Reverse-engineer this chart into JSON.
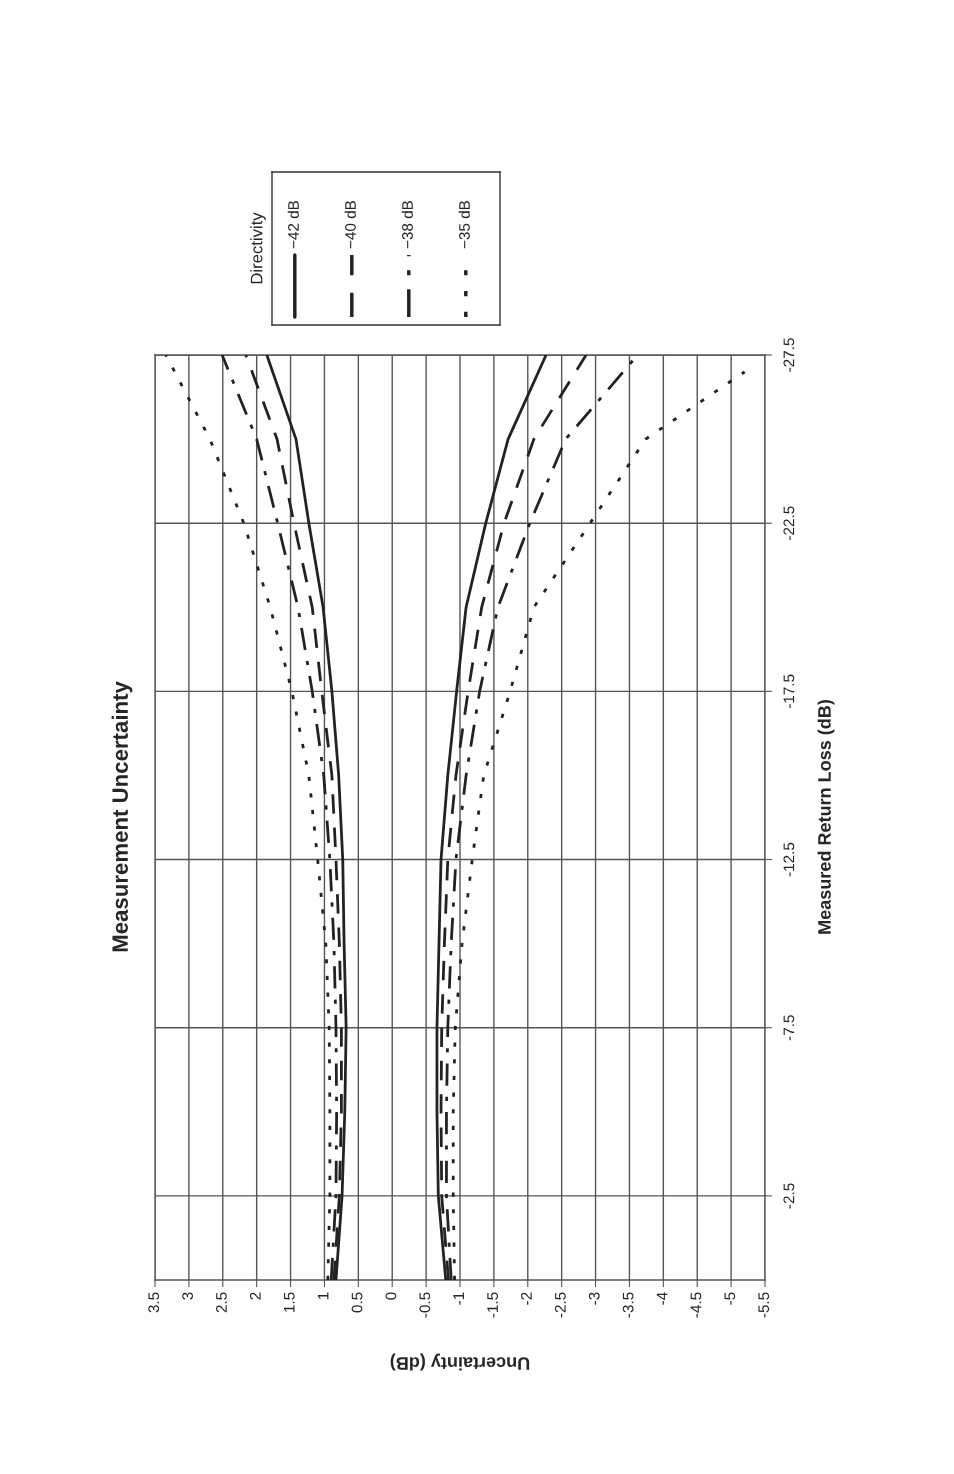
{
  "chart_data": {
    "type": "line",
    "title": "Measurement Uncertainty",
    "xlabel": "Uncertainty (dB)",
    "ylabel": "Measured Return Loss (dB)",
    "legend_title": "Directivity",
    "series": [
      {
        "name": "−42 dB",
        "color": "#222222",
        "line_style": "solid",
        "x": [
          0.83,
          0.74,
          0.7,
          0.68,
          0.71,
          0.73,
          0.79,
          0.89,
          1.02,
          1.23,
          1.42,
          1.85
        ],
        "values": [
          0,
          -2.5,
          -5,
          -7.5,
          -10,
          -12.5,
          -15,
          -17.5,
          -20,
          -22.5,
          -25,
          -27.5
        ]
      },
      {
        "name": "−40 dB",
        "color": "#222222",
        "line_style": "dashed",
        "x": [
          0.86,
          0.78,
          0.75,
          0.75,
          0.78,
          0.83,
          0.89,
          1.04,
          1.18,
          1.45,
          1.7,
          2.16
        ],
        "values": [
          0,
          -2.5,
          -5,
          -7.5,
          -10,
          -12.5,
          -15,
          -17.5,
          -20,
          -22.5,
          -25,
          -27.5
        ]
      },
      {
        "name": "−38 dB",
        "color": "#222222",
        "line_style": "dashdot",
        "x": [
          0.9,
          0.83,
          0.82,
          0.83,
          0.86,
          0.92,
          1.01,
          1.18,
          1.39,
          1.69,
          2.0,
          2.51
        ],
        "values": [
          0,
          -2.5,
          -5,
          -7.5,
          -10,
          -12.5,
          -15,
          -17.5,
          -20,
          -22.5,
          -25,
          -27.5
        ]
      },
      {
        "name": "−35 dB",
        "color": "#222222",
        "line_style": "dotted",
        "x": [
          0.95,
          0.92,
          0.92,
          0.93,
          0.98,
          1.1,
          1.23,
          1.48,
          1.8,
          2.19,
          2.69,
          3.34
        ],
        "values": [
          0,
          -2.5,
          -5,
          -7.5,
          -10,
          -12.5,
          -15,
          -17.5,
          -20,
          -22.5,
          -25,
          -27.5
        ]
      },
      {
        "color": "#222222",
        "line_style": "solid",
        "x": [
          -0.79,
          -0.68,
          -0.66,
          -0.66,
          -0.69,
          -0.72,
          -0.82,
          -0.95,
          -1.09,
          -1.38,
          -1.71,
          -2.27
        ],
        "values": [
          0,
          -2.5,
          -5,
          -7.5,
          -10,
          -12.5,
          -15,
          -17.5,
          -20,
          -22.5,
          -25,
          -27.5
        ]
      },
      {
        "color": "#222222",
        "line_style": "dashed",
        "x": [
          -0.83,
          -0.73,
          -0.72,
          -0.73,
          -0.77,
          -0.82,
          -0.94,
          -1.12,
          -1.32,
          -1.65,
          -2.09,
          -2.86
        ],
        "values": [
          0,
          -2.5,
          -5,
          -7.5,
          -10,
          -12.5,
          -15,
          -17.5,
          -20,
          -22.5,
          -25,
          -27.5
        ]
      },
      {
        "color": "#222222",
        "line_style": "dashdot",
        "x": [
          -0.87,
          -0.8,
          -0.8,
          -0.82,
          -0.87,
          -0.94,
          -1.09,
          -1.29,
          -1.56,
          -2.03,
          -2.56,
          -3.62
        ],
        "values": [
          0,
          -2.5,
          -5,
          -7.5,
          -10,
          -12.5,
          -15,
          -17.5,
          -20,
          -22.5,
          -25,
          -27.5
        ]
      },
      {
        "color": "#222222",
        "line_style": "dotted",
        "x": [
          -0.92,
          -0.9,
          -0.9,
          -0.93,
          -1.03,
          -1.18,
          -1.35,
          -1.74,
          -2.09,
          -2.92,
          -3.74,
          -5.2
        ],
        "values": [
          0,
          -2.5,
          -5,
          -7.5,
          -10,
          -12.5,
          -15,
          -17.5,
          -20,
          -22.5,
          -25,
          -27
        ]
      }
    ],
    "xlim": [
      3.5,
      -5.5
    ],
    "xticks": [
      3.5,
      3,
      2.5,
      2,
      1.5,
      1,
      0.5,
      0,
      -0.5,
      -1,
      -1.5,
      -2,
      -2.5,
      -3,
      -3.5,
      -4,
      -4.5,
      -5,
      -5.5
    ],
    "ylim": [
      0,
      -27.5
    ],
    "yticks": [
      -2.5,
      -7.5,
      -12.5,
      -17.5,
      -22.5,
      -27.5
    ],
    "grid": true,
    "legend": "top left"
  }
}
